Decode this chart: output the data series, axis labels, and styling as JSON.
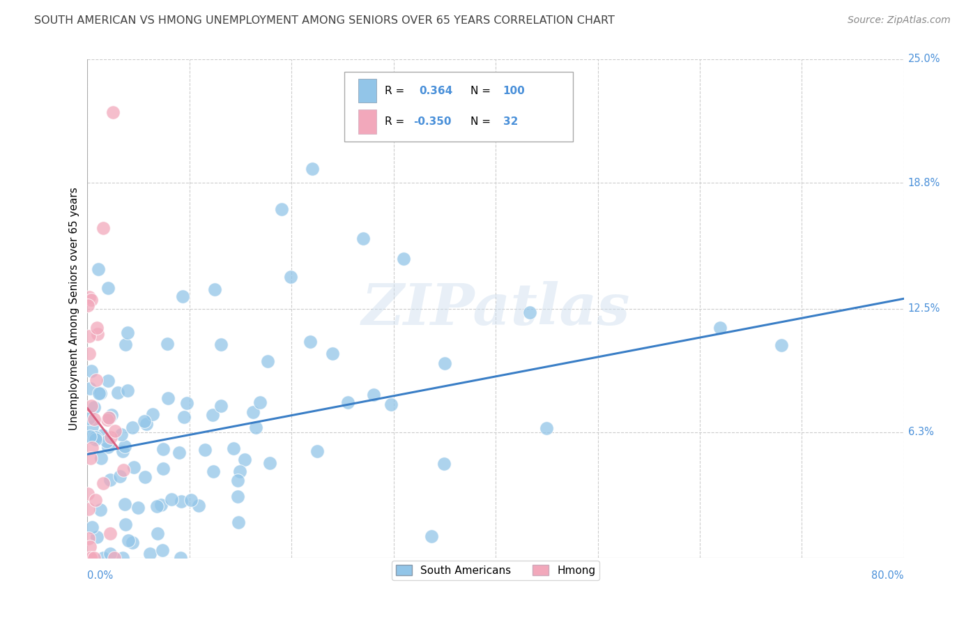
{
  "title": "SOUTH AMERICAN VS HMONG UNEMPLOYMENT AMONG SENIORS OVER 65 YEARS CORRELATION CHART",
  "source": "Source: ZipAtlas.com",
  "ylabel": "Unemployment Among Seniors over 65 years",
  "xlim": [
    0.0,
    0.8
  ],
  "ylim": [
    0.0,
    0.25
  ],
  "ytick_right_labels": [
    "25.0%",
    "18.8%",
    "12.5%",
    "6.3%"
  ],
  "ytick_right_values": [
    0.25,
    0.188,
    0.125,
    0.063
  ],
  "blue_R": 0.364,
  "blue_N": 100,
  "pink_R": -0.35,
  "pink_N": 32,
  "blue_color": "#92C5E8",
  "pink_color": "#F2A8BB",
  "blue_line_color": "#3A7EC6",
  "pink_line_color": "#D96080",
  "watermark": "ZIPatlas",
  "background_color": "#FFFFFF",
  "grid_color": "#CCCCCC",
  "title_color": "#404040",
  "legend_text_color": "#4A90D9",
  "axis_text_color": "#4A90D9"
}
